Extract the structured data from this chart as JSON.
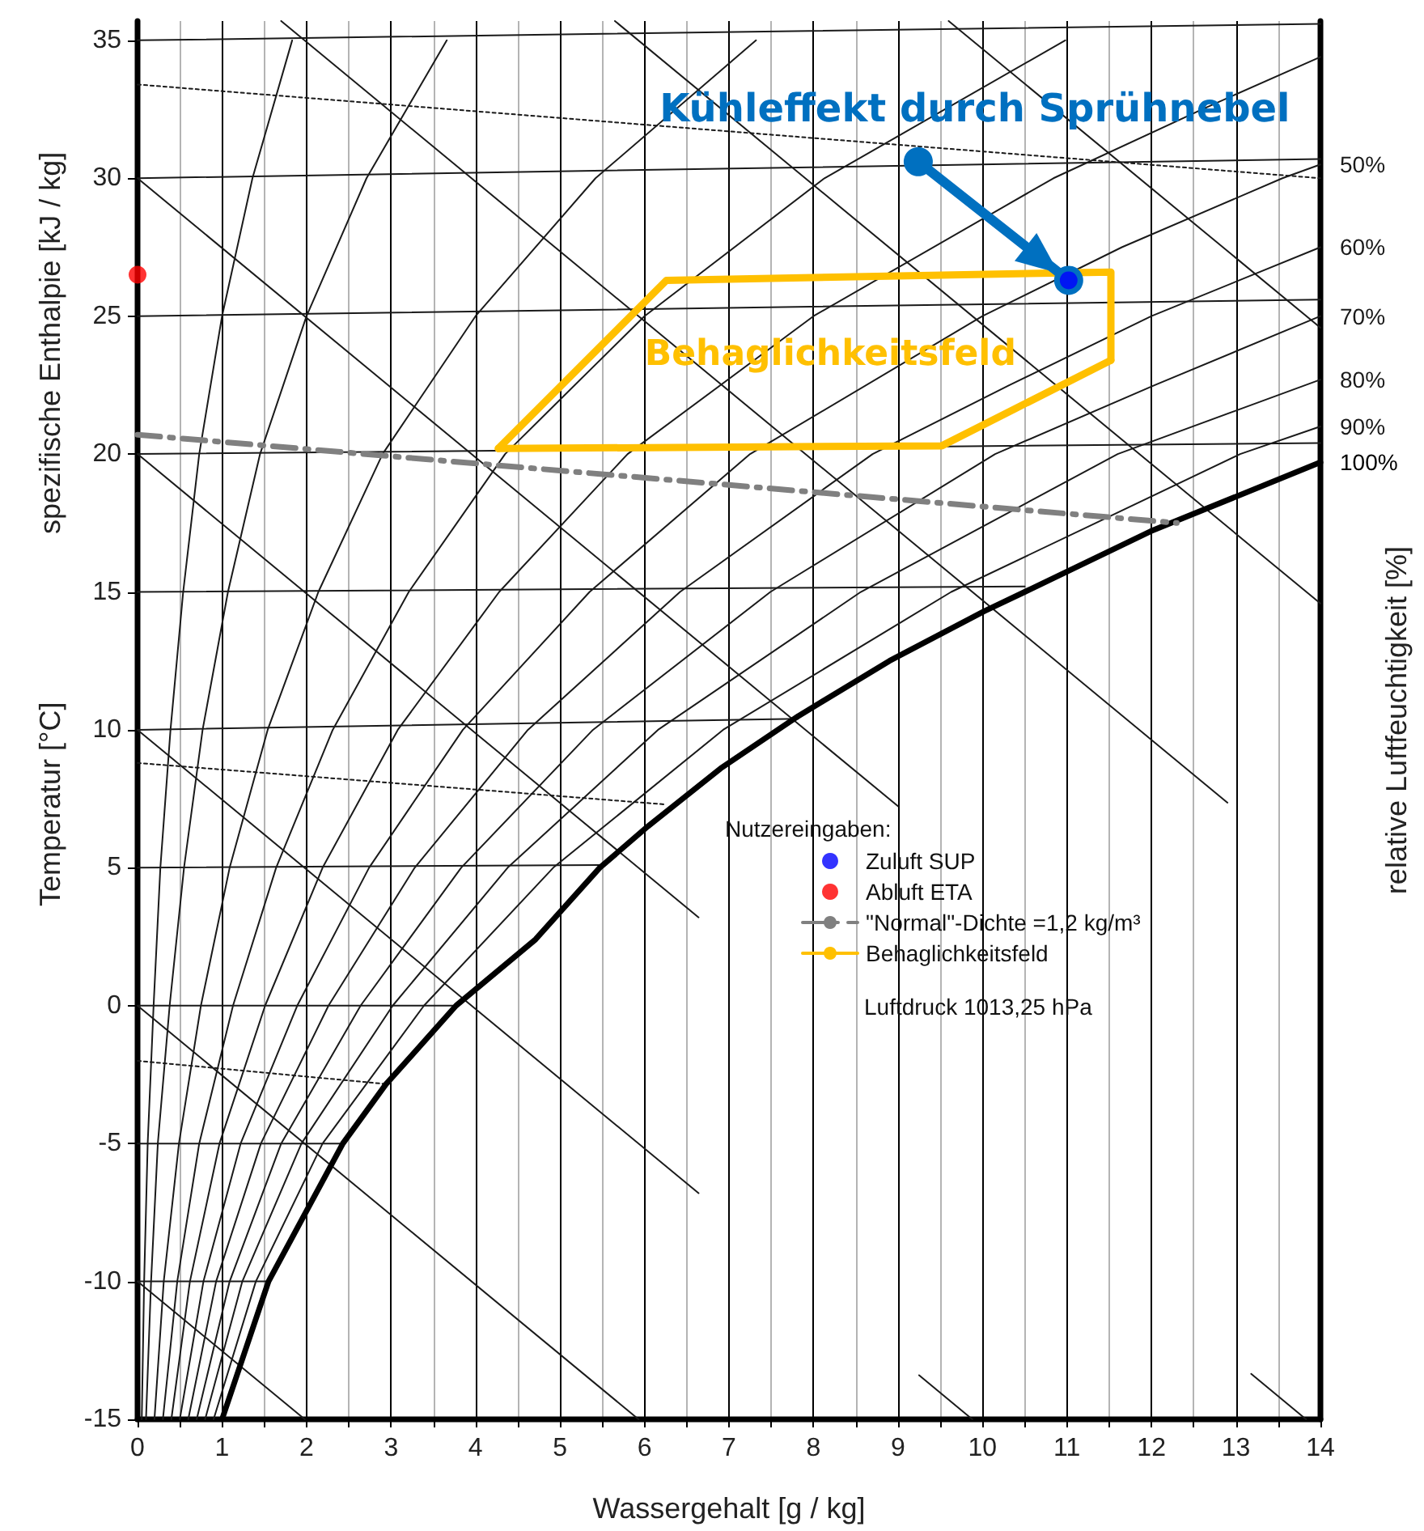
{
  "chart_data": {
    "type": "line",
    "xlabel": "Wassergehalt [g / kg]",
    "ylabel": "Temperatur [°C]",
    "y2label": "relative Luftfeuchtigkeit [%]",
    "legend_title": "Nutzereingaben:",
    "legend": "bottom right",
    "grid": "x",
    "xlim": [
      0,
      14
    ],
    "ylim": [
      -15,
      35.7
    ],
    "xticks": [
      0,
      {
        "value": 0.5,
        "label": null
      },
      1,
      {
        "value": 1.5,
        "label": null
      },
      2,
      {
        "value": 2.5,
        "label": null
      },
      3,
      {
        "value": 3.5,
        "label": null
      },
      4,
      {
        "value": 4.5,
        "label": null
      },
      5,
      {
        "value": 5.5,
        "label": null
      },
      6,
      {
        "value": 6.5,
        "label": null
      },
      7,
      {
        "value": 7.5,
        "label": null
      },
      8,
      {
        "value": 8.5,
        "label": null
      },
      9,
      {
        "value": 9.5,
        "label": null
      },
      10,
      {
        "value": 10.5,
        "label": null
      },
      11,
      {
        "value": 11.5,
        "label": null
      },
      12,
      {
        "value": 12.5,
        "label": null
      },
      13,
      {
        "value": 13.5,
        "label": null
      },
      14
    ],
    "yticks": [
      -15,
      -10,
      -5,
      0,
      5,
      10,
      15,
      20,
      25,
      30,
      35
    ],
    "annotations": [
      {
        "text": "Kühleffekt durch Sprühnebel",
        "x": 9.24,
        "y": 30.6
      },
      "Behaglichkeitsfeld",
      "spezifische Enthalpie [kJ / kg]",
      "Luftdruck 1013,25 hPa"
    ],
    "series": [
      {
        "color": "#1a1a1a",
        "x": [
          0,
          1.55
        ],
        "values": [
          -10,
          -10
        ]
      },
      {
        "color": "#1a1a1a",
        "x": [
          0,
          2.43
        ],
        "values": [
          -5,
          -5
        ]
      },
      {
        "color": "#1a1a1a",
        "x": [
          0,
          3.77
        ],
        "values": [
          0,
          0
        ]
      },
      {
        "color": "#1a1a1a",
        "x": [
          0,
          5.47
        ],
        "values": [
          5,
          5.1
        ]
      },
      {
        "color": "#1a1a1a",
        "x": [
          0,
          7.82
        ],
        "values": [
          10,
          10.4
        ]
      },
      {
        "color": "#1a1a1a",
        "x": [
          0,
          10.5
        ],
        "values": [
          15,
          15.2
        ]
      },
      {
        "color": "#1a1a1a",
        "x": [
          0,
          14
        ],
        "values": [
          20,
          20.4
        ]
      },
      {
        "color": "#1a1a1a",
        "x": [
          0,
          14
        ],
        "values": [
          25,
          25.6
        ]
      },
      {
        "color": "#1a1a1a",
        "x": [
          0,
          14
        ],
        "values": [
          30,
          30.7
        ]
      },
      {
        "color": "#1a1a1a",
        "x": [
          0,
          14
        ],
        "values": [
          35,
          35.6
        ]
      },
      {
        "color": "#1a1a1a",
        "x": [
          0,
          1.98
        ],
        "values": [
          -10,
          -15
        ]
      },
      {
        "color": "#1a1a1a",
        "x": [
          0,
          5.93
        ],
        "values": [
          0,
          -15
        ]
      },
      {
        "color": "#1a1a1a",
        "x": [
          0,
          6.64,
          8,
          9.25,
          9.88
        ],
        "values": [
          10,
          -6.8,
          null,
          -13.4,
          -15
        ]
      },
      {
        "color": "#1a1a1a",
        "x": [
          0,
          6.64,
          10,
          13.18,
          13.83
        ],
        "values": [
          20,
          3.2,
          null,
          -13.35,
          -15
        ]
      },
      {
        "color": "#1a1a1a",
        "x": [
          0,
          9
        ],
        "values": [
          30,
          7.23
        ]
      },
      {
        "color": "#1a1a1a",
        "x": [
          1.7,
          12.9
        ],
        "values": [
          35.7,
          7.36
        ]
      },
      {
        "color": "#1a1a1a",
        "x": [
          5.65,
          14
        ],
        "values": [
          35.7,
          14.58
        ]
      },
      {
        "color": "#1a1a1a",
        "x": [
          9.6,
          14
        ],
        "values": [
          35.7,
          24.58
        ]
      },
      {
        "color": "#1a1a1a",
        "line_style": "dotted",
        "x": [
          0,
          14
        ],
        "values": [
          33.4,
          30
        ]
      },
      {
        "color": "#1a1a1a",
        "line_style": "dotted",
        "x": [
          0,
          6.23
        ],
        "values": [
          8.8,
          7.3
        ]
      },
      {
        "color": "#1a1a1a",
        "line_style": "dotted",
        "x": [
          0,
          2.97
        ],
        "values": [
          -2,
          -2.85
        ]
      },
      {
        "color": "#1a1a1a",
        "x": [
          0.05,
          0.078,
          0.12,
          0.19,
          0.27,
          0.39,
          0.54,
          0.73,
          1.0,
          1.36,
          1.83
        ],
        "values": [
          -15,
          -10,
          -5,
          0,
          5,
          10,
          15,
          20,
          25,
          30,
          35
        ]
      },
      {
        "color": "#1a1a1a",
        "x": [
          0.1,
          0.16,
          0.24,
          0.38,
          0.55,
          0.77,
          1.07,
          1.45,
          2.0,
          2.71,
          3.66
        ],
        "values": [
          -15,
          -10,
          -5,
          0,
          5,
          10,
          15,
          20,
          25,
          30,
          35
        ]
      },
      {
        "color": "#1a1a1a",
        "x": [
          0.2,
          0.31,
          0.49,
          0.75,
          1.09,
          1.54,
          2.14,
          2.9,
          4.0,
          5.42,
          7.32
        ],
        "values": [
          -15,
          -10,
          -5,
          0,
          5,
          10,
          15,
          20,
          25,
          30,
          35
        ]
      },
      {
        "color": "#1a1a1a",
        "x": [
          0.3,
          0.47,
          0.73,
          1.13,
          1.64,
          2.31,
          3.21,
          4.35,
          6.0,
          8.13,
          10.98
        ],
        "values": [
          -15,
          -10,
          -5,
          0,
          5,
          10,
          15,
          20,
          25,
          30,
          35
        ]
      },
      {
        "color": "#1a1a1a",
        "x": [
          0.4,
          0.62,
          0.97,
          1.51,
          2.19,
          3.08,
          4.28,
          5.8,
          8.0,
          10.84,
          12.6,
          14
        ],
        "values": [
          -15,
          -10,
          -5,
          0,
          5,
          10,
          15,
          20,
          25,
          30,
          32.5,
          34.4
        ]
      },
      {
        "name": "50%",
        "color": "#1a1a1a",
        "x": [
          0.5,
          0.78,
          1.22,
          1.89,
          2.74,
          3.85,
          5.35,
          7.25,
          10.0,
          11.65,
          13.55,
          14
        ],
        "values": [
          -15,
          -10,
          -5,
          0,
          5,
          10,
          15,
          20,
          25,
          27.5,
          30,
          30.5
        ]
      },
      {
        "name": "60%",
        "color": "#1a1a1a",
        "x": [
          0.6,
          0.93,
          1.46,
          2.26,
          3.28,
          4.62,
          6.42,
          8.7,
          10.32,
          12.0,
          14
        ],
        "values": [
          -15,
          -10,
          -5,
          0,
          5,
          10,
          15,
          20,
          22.5,
          25,
          27.5
        ]
      },
      {
        "name": "70%",
        "color": "#1a1a1a",
        "x": [
          0.7,
          1.09,
          1.7,
          2.64,
          3.83,
          5.39,
          7.49,
          10.15,
          12.04,
          14
        ],
        "values": [
          -15,
          -10,
          -5,
          0,
          5,
          10,
          15,
          20,
          22.5,
          25
        ]
      },
      {
        "name": "80%",
        "color": "#1a1a1a",
        "x": [
          0.8,
          1.24,
          1.94,
          3.02,
          4.38,
          6.16,
          8.56,
          10.08,
          11.6,
          14
        ],
        "values": [
          -15,
          -10,
          -5,
          0,
          5,
          10,
          15,
          17.5,
          20,
          22.7
        ]
      },
      {
        "name": "90%",
        "color": "#1a1a1a",
        "x": [
          0.9,
          1.4,
          2.19,
          3.39,
          4.92,
          6.93,
          9.63,
          11.34,
          13.05,
          14
        ],
        "values": [
          -15,
          -10,
          -5,
          0,
          5,
          10,
          15,
          17.5,
          20,
          21
        ]
      },
      {
        "name": "100%",
        "color": "#000000",
        "x": [
          1.0,
          1.55,
          2.43,
          2.94,
          3.77,
          4.71,
          5.47,
          6.04,
          6.9,
          7.82,
          8.9,
          10.02,
          10.5,
          11.99,
          14
        ],
        "values": [
          -15,
          -10,
          -5,
          -2.85,
          0,
          2.4,
          5,
          6.5,
          8.6,
          10.5,
          12.5,
          14.3,
          15.0,
          17.2,
          19.7
        ]
      },
      {
        "type": "scatter",
        "name": "Zuluft SUP",
        "color": "#0000ff",
        "marker": "circle",
        "x": [
          11.02
        ],
        "values": [
          26.3
        ]
      },
      {
        "type": "scatter",
        "name": "Abluft ETA",
        "color": "#ff0000",
        "marker": "circle",
        "x": [
          0
        ],
        "values": [
          26.5
        ]
      },
      {
        "name": "\"Normal\"-Dichte =1,2 kg/m³",
        "color": "#808080",
        "line_style": "dashed",
        "x": [
          0,
          12.3
        ],
        "values": [
          20.7,
          17.5
        ]
      },
      {
        "name": "Behaglichkeitsfeld",
        "color": "#ffc000",
        "x": [
          4.27,
          6.26,
          11.52,
          11.52
        ],
        "values": [
          20.2,
          26.3,
          26.6,
          23.4
        ]
      },
      {
        "color": "#ffc000",
        "x": [
          4.27,
          9.52,
          11.52
        ],
        "values": [
          20.2,
          20.3,
          23.4
        ]
      },
      {
        "color": "#0070c0",
        "marker": "circle",
        "x": [
          9.24,
          11.02
        ],
        "values": [
          30.6,
          26.3
        ]
      }
    ]
  }
}
